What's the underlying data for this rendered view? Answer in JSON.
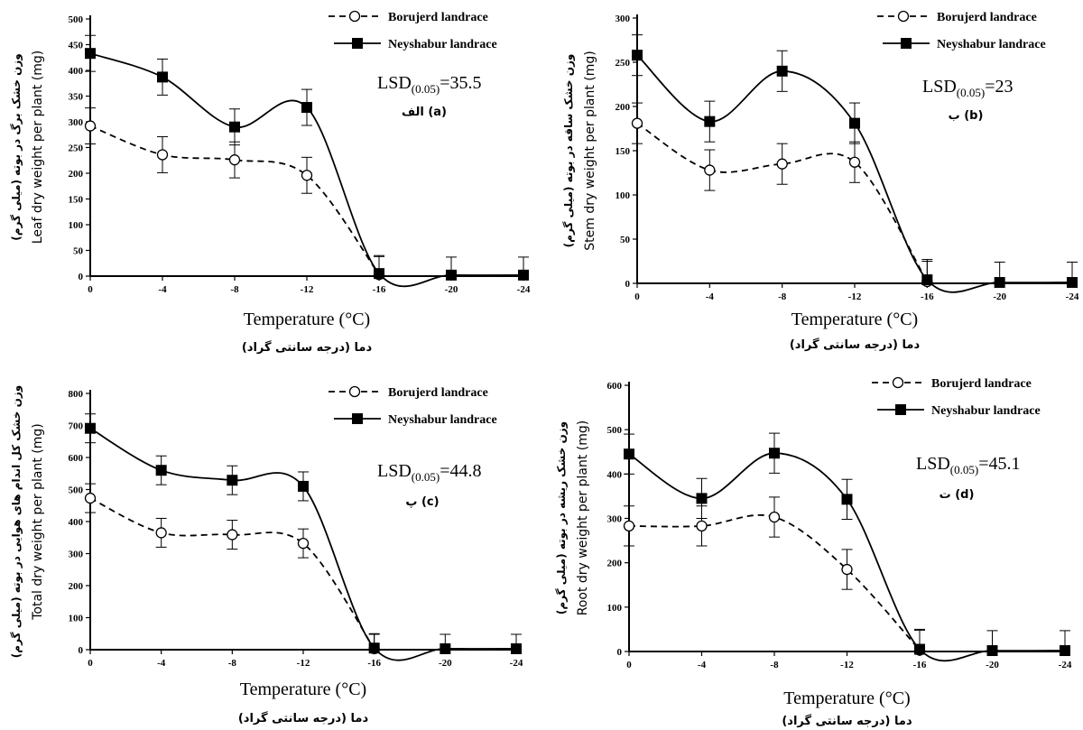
{
  "chart_data": [
    {
      "type": "line",
      "id": "a",
      "ylabel_en": "Leaf dry weight per plant (mg)",
      "ylabel_fa": "وزن خشک برگ در بوته (میلی گرم)",
      "xlabel_en": "Temperature (°C)",
      "xlabel_fa": "دما (درجه سانتی گراد)",
      "x": [
        0,
        -4,
        -8,
        -12,
        -16,
        -20,
        -24
      ],
      "x_tick_labels": [
        "0",
        "-4",
        "-8",
        "-12",
        "-16",
        "-20",
        "-24"
      ],
      "ylim": [
        0,
        500
      ],
      "y_ticks": [
        0,
        50,
        100,
        150,
        200,
        250,
        300,
        350,
        400,
        450,
        500
      ],
      "y_tick_labels": [
        "0",
        "50",
        "100",
        "150",
        "200",
        "250",
        "300",
        "350",
        "400",
        "450",
        "500"
      ],
      "lsd_base": "LSD",
      "lsd_sub": "(0.05)",
      "lsd_value": "=35.5",
      "panel_label": "الف (a)",
      "series": [
        {
          "name": "Borujerd landrace",
          "style": "dashed",
          "marker": "open-circle",
          "values": [
            292,
            236,
            226,
            196,
            3,
            null,
            null
          ],
          "error": [
            35,
            35,
            35,
            35,
            35,
            null,
            null
          ]
        },
        {
          "name": "Neyshabur landrace",
          "style": "solid",
          "marker": "filled-square",
          "values": [
            433,
            387,
            290,
            328,
            5,
            2,
            2
          ],
          "error": [
            35,
            35,
            35,
            35,
            35,
            35,
            35
          ]
        }
      ],
      "legend_position": "top-right"
    },
    {
      "type": "line",
      "id": "b",
      "ylabel_en": "Stem dry weight per plant (mg)",
      "ylabel_fa": "وزن خشک ساقه در بوته (میلی گرم)",
      "xlabel_en": "Temperature (°C)",
      "xlabel_fa": "دما (درجه سانتی گراد)",
      "x": [
        0,
        -4,
        -8,
        -12,
        -16,
        -20,
        -24
      ],
      "x_tick_labels": [
        "0",
        "-4",
        "-8",
        "-12",
        "-16",
        "-20",
        "-24"
      ],
      "ylim": [
        0,
        300
      ],
      "y_ticks": [
        0,
        50,
        100,
        150,
        200,
        250,
        300
      ],
      "y_tick_labels": [
        "0",
        "50",
        "100",
        "150",
        "200",
        "250",
        "300"
      ],
      "lsd_base": "LSD",
      "lsd_sub": "(0.05)",
      "lsd_value": "=23",
      "panel_label": "ب (b)",
      "series": [
        {
          "name": "Borujerd landrace",
          "style": "dashed",
          "marker": "open-circle",
          "values": [
            181,
            128,
            135,
            137,
            2,
            null,
            null
          ],
          "error": [
            23,
            23,
            23,
            23,
            23,
            null,
            null
          ]
        },
        {
          "name": "Neyshabur landrace",
          "style": "solid",
          "marker": "filled-square",
          "values": [
            258,
            183,
            240,
            181,
            4,
            1,
            1
          ],
          "error": [
            23,
            23,
            23,
            23,
            23,
            23,
            23
          ]
        }
      ],
      "legend_position": "top-right"
    },
    {
      "type": "line",
      "id": "c",
      "ylabel_en": "Total dry weight per plant (mg)",
      "ylabel_fa": "وزن خشک کل اندام های هوایی در بوته (میلی گرم)",
      "xlabel_en": "Temperature (°C)",
      "xlabel_fa": "دما (درجه سانتی گراد)",
      "x": [
        0,
        -4,
        -8,
        -12,
        -16,
        -20,
        -24
      ],
      "x_tick_labels": [
        "0",
        "-4",
        "-8",
        "-12",
        "-16",
        "-20",
        "-24"
      ],
      "ylim": [
        0,
        800
      ],
      "y_ticks": [
        0,
        100,
        200,
        300,
        400,
        500,
        600,
        700,
        800
      ],
      "y_tick_labels": [
        "0",
        "100",
        "200",
        "300",
        "400",
        "500",
        "600",
        "700",
        "800"
      ],
      "lsd_base": "LSD",
      "lsd_sub": "(0.05)",
      "lsd_value": "=44.8",
      "panel_label": "پ (c)",
      "series": [
        {
          "name": "Borujerd landrace",
          "style": "dashed",
          "marker": "open-circle",
          "values": [
            473,
            365,
            359,
            332,
            3,
            null,
            null
          ],
          "error": [
            45,
            45,
            45,
            45,
            45,
            null,
            null
          ]
        },
        {
          "name": "Neyshabur landrace",
          "style": "solid",
          "marker": "filled-square",
          "values": [
            691,
            560,
            529,
            510,
            5,
            3,
            3
          ],
          "error": [
            45,
            45,
            45,
            45,
            45,
            45,
            45
          ]
        }
      ],
      "legend_position": "top-right"
    },
    {
      "type": "line",
      "id": "d",
      "ylabel_en": "Root dry weight per plant (mg)",
      "ylabel_fa": "وزن خشک ریشه در بوته (میلی گرم)",
      "xlabel_en": "Temperature (°C)",
      "xlabel_fa": "دما (درجه سانتی گراد)",
      "x": [
        0,
        -4,
        -8,
        -12,
        -16,
        -20,
        -24
      ],
      "x_tick_labels": [
        "0",
        "-4",
        "-8",
        "-12",
        "-16",
        "-20",
        "-24"
      ],
      "ylim": [
        0,
        600
      ],
      "y_ticks": [
        0,
        100,
        200,
        300,
        400,
        500,
        600
      ],
      "y_tick_labels": [
        "0",
        "100",
        "200",
        "300",
        "400",
        "500",
        "600"
      ],
      "lsd_base": "LSD",
      "lsd_sub": "(0.05)",
      "lsd_value": "=45.1",
      "panel_label": "ت (d)",
      "series": [
        {
          "name": "Borujerd landrace",
          "style": "dashed",
          "marker": "open-circle",
          "values": [
            283,
            283,
            303,
            185,
            3,
            null,
            null
          ],
          "error": [
            45,
            45,
            45,
            45,
            45,
            null,
            null
          ]
        },
        {
          "name": "Neyshabur landrace",
          "style": "solid",
          "marker": "filled-square",
          "values": [
            445,
            345,
            447,
            343,
            5,
            2,
            2
          ],
          "error": [
            45,
            45,
            45,
            45,
            45,
            45,
            45
          ]
        }
      ],
      "legend_position": "top-right"
    }
  ]
}
